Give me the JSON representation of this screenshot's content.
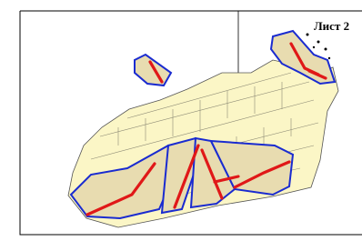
{
  "sheet_label": "Лист 2"
}
